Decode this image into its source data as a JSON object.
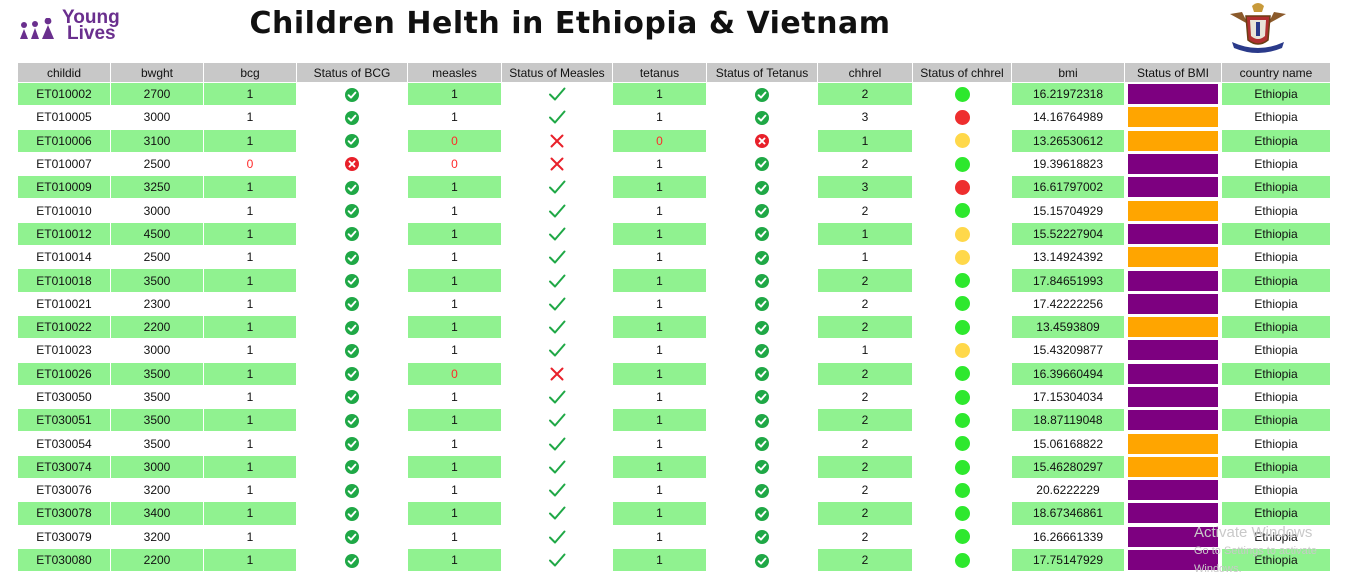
{
  "header": {
    "logo_text_1": "Young",
    "logo_text_2": "Lives",
    "title": "Children Helth in Ethiopia & Vietnam"
  },
  "colors": {
    "row_green": "#90f290",
    "header_gray": "#c8c8c8",
    "bmi_purple": "#7d0080",
    "bmi_orange": "#ffa500",
    "ok_green": "#1fa846",
    "bad_red": "#e8202a"
  },
  "columns": [
    "childid",
    "bwght",
    "bcg",
    "Status of BCG",
    "measles",
    "Status of Measles",
    "tetanus",
    "Status of Tetanus",
    "chhrel",
    "Status of chhrel",
    "bmi",
    "Status of BMI",
    "country name"
  ],
  "rows": [
    {
      "childid": "ET010002",
      "bwght": "2700",
      "bcg": "1",
      "measles": "1",
      "tetanus": "1",
      "chhrel": "2",
      "chhrel_status": "green",
      "bmi": "16.21972318",
      "bmi_status": "purple",
      "country": "Ethiopia"
    },
    {
      "childid": "ET010005",
      "bwght": "3000",
      "bcg": "1",
      "measles": "1",
      "tetanus": "1",
      "chhrel": "3",
      "chhrel_status": "red",
      "bmi": "14.16764989",
      "bmi_status": "orange",
      "country": "Ethiopia"
    },
    {
      "childid": "ET010006",
      "bwght": "3100",
      "bcg": "1",
      "measles": "0",
      "tetanus": "0",
      "chhrel": "1",
      "chhrel_status": "yellow",
      "bmi": "13.26530612",
      "bmi_status": "orange",
      "country": "Ethiopia"
    },
    {
      "childid": "ET010007",
      "bwght": "2500",
      "bcg": "0",
      "measles": "0",
      "tetanus": "1",
      "chhrel": "2",
      "chhrel_status": "green",
      "bmi": "19.39618823",
      "bmi_status": "purple",
      "country": "Ethiopia"
    },
    {
      "childid": "ET010009",
      "bwght": "3250",
      "bcg": "1",
      "measles": "1",
      "tetanus": "1",
      "chhrel": "3",
      "chhrel_status": "red",
      "bmi": "16.61797002",
      "bmi_status": "purple",
      "country": "Ethiopia"
    },
    {
      "childid": "ET010010",
      "bwght": "3000",
      "bcg": "1",
      "measles": "1",
      "tetanus": "1",
      "chhrel": "2",
      "chhrel_status": "green",
      "bmi": "15.15704929",
      "bmi_status": "orange",
      "country": "Ethiopia"
    },
    {
      "childid": "ET010012",
      "bwght": "4500",
      "bcg": "1",
      "measles": "1",
      "tetanus": "1",
      "chhrel": "1",
      "chhrel_status": "yellow",
      "bmi": "15.52227904",
      "bmi_status": "purple",
      "country": "Ethiopia"
    },
    {
      "childid": "ET010014",
      "bwght": "2500",
      "bcg": "1",
      "measles": "1",
      "tetanus": "1",
      "chhrel": "1",
      "chhrel_status": "yellow",
      "bmi": "13.14924392",
      "bmi_status": "orange",
      "country": "Ethiopia"
    },
    {
      "childid": "ET010018",
      "bwght": "3500",
      "bcg": "1",
      "measles": "1",
      "tetanus": "1",
      "chhrel": "2",
      "chhrel_status": "green",
      "bmi": "17.84651993",
      "bmi_status": "purple",
      "country": "Ethiopia"
    },
    {
      "childid": "ET010021",
      "bwght": "2300",
      "bcg": "1",
      "measles": "1",
      "tetanus": "1",
      "chhrel": "2",
      "chhrel_status": "green",
      "bmi": "17.42222256",
      "bmi_status": "purple",
      "country": "Ethiopia"
    },
    {
      "childid": "ET010022",
      "bwght": "2200",
      "bcg": "1",
      "measles": "1",
      "tetanus": "1",
      "chhrel": "2",
      "chhrel_status": "green",
      "bmi": "13.4593809",
      "bmi_status": "orange",
      "country": "Ethiopia"
    },
    {
      "childid": "ET010023",
      "bwght": "3000",
      "bcg": "1",
      "measles": "1",
      "tetanus": "1",
      "chhrel": "1",
      "chhrel_status": "yellow",
      "bmi": "15.43209877",
      "bmi_status": "purple",
      "country": "Ethiopia"
    },
    {
      "childid": "ET010026",
      "bwght": "3500",
      "bcg": "1",
      "measles": "0",
      "tetanus": "1",
      "chhrel": "2",
      "chhrel_status": "green",
      "bmi": "16.39660494",
      "bmi_status": "purple",
      "country": "Ethiopia"
    },
    {
      "childid": "ET030050",
      "bwght": "3500",
      "bcg": "1",
      "measles": "1",
      "tetanus": "1",
      "chhrel": "2",
      "chhrel_status": "green",
      "bmi": "17.15304034",
      "bmi_status": "purple",
      "country": "Ethiopia"
    },
    {
      "childid": "ET030051",
      "bwght": "3500",
      "bcg": "1",
      "measles": "1",
      "tetanus": "1",
      "chhrel": "2",
      "chhrel_status": "green",
      "bmi": "18.87119048",
      "bmi_status": "purple",
      "country": "Ethiopia"
    },
    {
      "childid": "ET030054",
      "bwght": "3500",
      "bcg": "1",
      "measles": "1",
      "tetanus": "1",
      "chhrel": "2",
      "chhrel_status": "green",
      "bmi": "15.06168822",
      "bmi_status": "orange",
      "country": "Ethiopia"
    },
    {
      "childid": "ET030074",
      "bwght": "3000",
      "bcg": "1",
      "measles": "1",
      "tetanus": "1",
      "chhrel": "2",
      "chhrel_status": "green",
      "bmi": "15.46280297",
      "bmi_status": "orange",
      "country": "Ethiopia"
    },
    {
      "childid": "ET030076",
      "bwght": "3200",
      "bcg": "1",
      "measles": "1",
      "tetanus": "1",
      "chhrel": "2",
      "chhrel_status": "green",
      "bmi": "20.6222229",
      "bmi_status": "purple",
      "country": "Ethiopia"
    },
    {
      "childid": "ET030078",
      "bwght": "3400",
      "bcg": "1",
      "measles": "1",
      "tetanus": "1",
      "chhrel": "2",
      "chhrel_status": "green",
      "bmi": "18.67346861",
      "bmi_status": "purple",
      "country": "Ethiopia"
    },
    {
      "childid": "ET030079",
      "bwght": "3200",
      "bcg": "1",
      "measles": "1",
      "tetanus": "1",
      "chhrel": "2",
      "chhrel_status": "green",
      "bmi": "16.26661339",
      "bmi_status": "purple",
      "country": "Ethiopia"
    },
    {
      "childid": "ET030080",
      "bwght": "2200",
      "bcg": "1",
      "measles": "1",
      "tetanus": "1",
      "chhrel": "2",
      "chhrel_status": "green",
      "bmi": "17.75147929",
      "bmi_status": "purple",
      "country": "Ethiopia"
    }
  ],
  "watermark": {
    "line1": "Activate Windows",
    "line2": "Go to Settings to activate Windows."
  }
}
